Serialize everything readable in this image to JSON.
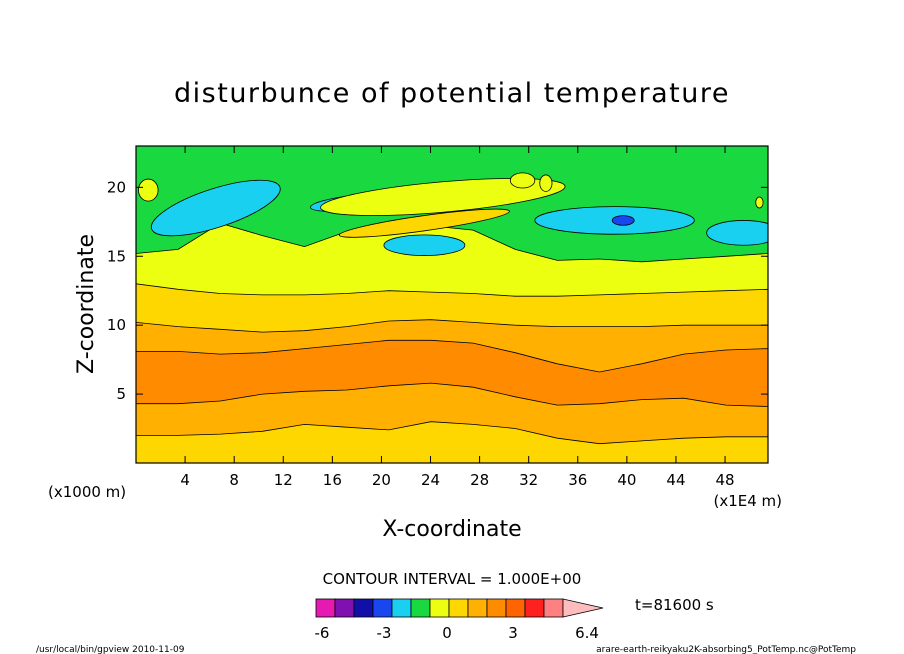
{
  "chart_data": {
    "type": "contour",
    "title": "disturbunce of potential temperature",
    "xlabel": "X-coordinate",
    "ylabel": "Z-coordinate",
    "x_unit_left": "(x1000 m)",
    "x_unit_right": "(x1E4 m)",
    "x_ticks": [
      "4",
      "8",
      "12",
      "16",
      "20",
      "24",
      "28",
      "32",
      "36",
      "40",
      "44",
      "48"
    ],
    "y_ticks": [
      "5",
      "10",
      "15",
      "20"
    ],
    "xlim": [
      0,
      51.5
    ],
    "ylim": [
      0,
      23
    ],
    "contour_interval": "CONTOUR INTERVAL = 1.000E+00",
    "time_label": "t=81600 s",
    "colorbar": {
      "labels": [
        "-6",
        "-3",
        "0",
        "3",
        "6.4"
      ],
      "colors": [
        "#e619b3",
        "#8010b0",
        "#1010a8",
        "#1a46f0",
        "#1ad0f0",
        "#1ad840",
        "#ecff10",
        "#ffd700",
        "#ffb000",
        "#ff8c00",
        "#ff6400",
        "#ff2020",
        "#ff8080",
        "#ffbcbc"
      ]
    },
    "bands": [
      {
        "color": "#ffd700",
        "top": [
          2.0,
          2.0,
          2.1,
          2.3,
          2.8,
          2.6,
          2.4,
          3.0,
          2.8,
          2.5,
          1.8,
          1.4,
          1.6,
          1.8,
          1.9,
          1.9
        ]
      },
      {
        "color": "#ffb000",
        "top": [
          4.3,
          4.3,
          4.5,
          5.0,
          5.2,
          5.3,
          5.6,
          5.8,
          5.5,
          4.8,
          4.2,
          4.3,
          4.6,
          4.7,
          4.2,
          4.1
        ]
      },
      {
        "color": "#ff8c00",
        "top": [
          8.1,
          8.1,
          7.9,
          8.0,
          8.3,
          8.6,
          8.9,
          8.9,
          8.7,
          8.0,
          7.2,
          6.6,
          7.2,
          7.9,
          8.2,
          8.3
        ]
      },
      {
        "color": "#ffb000",
        "top": [
          10.2,
          9.9,
          9.7,
          9.5,
          9.6,
          9.9,
          10.3,
          10.4,
          10.2,
          10.0,
          9.9,
          9.9,
          9.9,
          10.0,
          10.0,
          10.0
        ]
      },
      {
        "color": "#ffd700",
        "top": [
          13.0,
          12.6,
          12.3,
          12.2,
          12.2,
          12.3,
          12.5,
          12.4,
          12.3,
          12.1,
          12.1,
          12.2,
          12.3,
          12.4,
          12.5,
          12.6
        ]
      },
      {
        "color": "#ecff10",
        "top": [
          15.2,
          15.5,
          17.4,
          16.5,
          15.7,
          16.8,
          17.0,
          17.2,
          16.9,
          15.5,
          14.7,
          14.8,
          14.6,
          14.8,
          15.0,
          15.2
        ]
      },
      {
        "color": "#1ad840",
        "top": [
          23,
          23,
          23,
          23,
          23,
          23,
          23,
          23,
          23,
          23,
          23,
          23,
          23,
          23,
          23,
          23
        ]
      }
    ],
    "blobs": [
      {
        "color": "#1ad0f0",
        "cx": 6.5,
        "cy": 18.5,
        "rx": 5.5,
        "ry": 1.4,
        "angle": -18
      },
      {
        "color": "#1ad0f0",
        "cx": 18.0,
        "cy": 18.9,
        "rx": 3.8,
        "ry": 0.55,
        "angle": -6
      },
      {
        "color": "#1ad0f0",
        "cx": 23.5,
        "cy": 15.8,
        "rx": 3.3,
        "ry": 0.75,
        "angle": 0
      },
      {
        "color": "#1ad0f0",
        "cx": 39.0,
        "cy": 17.6,
        "rx": 6.5,
        "ry": 1.0,
        "angle": 0
      },
      {
        "color": "#1ad0f0",
        "cx": 49.5,
        "cy": 16.7,
        "rx": 3.0,
        "ry": 0.9,
        "angle": 0
      },
      {
        "color": "#1a46f0",
        "cx": 39.7,
        "cy": 17.6,
        "rx": 0.9,
        "ry": 0.35,
        "angle": 0
      },
      {
        "color": "#ecff10",
        "cx": 25.0,
        "cy": 19.3,
        "rx": 10.0,
        "ry": 1.1,
        "angle": -5
      },
      {
        "color": "#ffd700",
        "cx": 23.5,
        "cy": 17.4,
        "rx": 7.0,
        "ry": 0.55,
        "angle": -8
      },
      {
        "color": "#ecff10",
        "cx": 31.5,
        "cy": 20.5,
        "rx": 1.0,
        "ry": 0.55,
        "angle": 0
      },
      {
        "color": "#ecff10",
        "cx": 33.4,
        "cy": 20.3,
        "rx": 0.5,
        "ry": 0.6,
        "angle": 0
      },
      {
        "color": "#ecff10",
        "cx": 1.0,
        "cy": 19.8,
        "rx": 0.8,
        "ry": 0.8,
        "angle": 0
      },
      {
        "color": "#ecff10",
        "cx": 50.8,
        "cy": 18.9,
        "rx": 0.3,
        "ry": 0.4,
        "angle": 0
      }
    ]
  },
  "footer": {
    "left": "/usr/local/bin/gpview  2010-11-09",
    "right": "arare-earth-reikyaku2K-absorbing5_PotTemp.nc@PotTemp"
  }
}
